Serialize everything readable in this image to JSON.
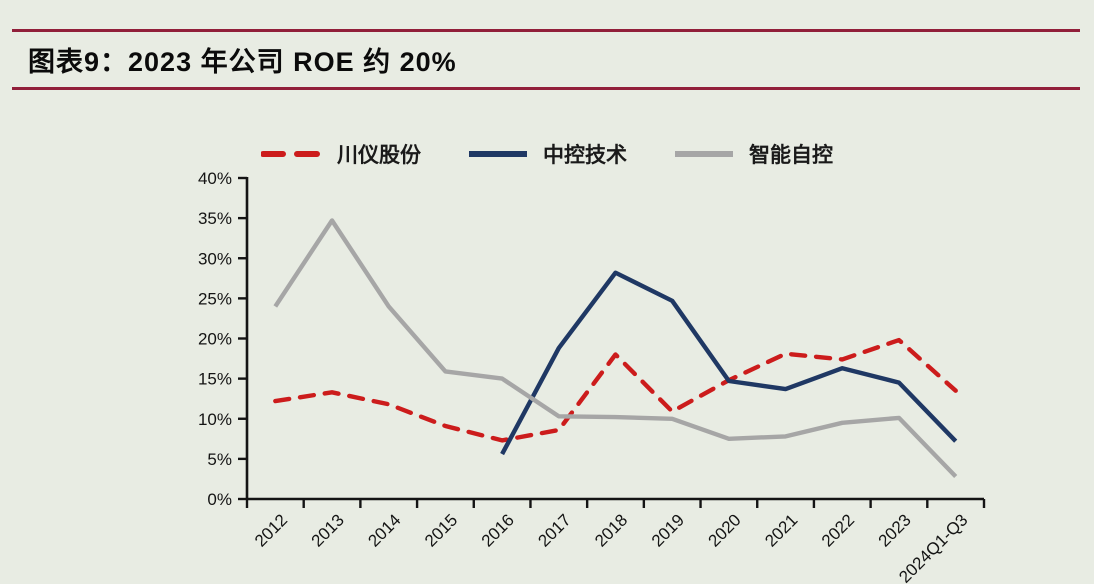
{
  "page": {
    "background_color": "#e8ece3",
    "rule_color": "#911f3a"
  },
  "header": {
    "title": "图表9：2023 年公司 ROE 约 20%"
  },
  "chart_data": {
    "type": "line",
    "title": "图表9：2023 年公司 ROE 约 20%",
    "categories": [
      "2012",
      "2013",
      "2014",
      "2015",
      "2016",
      "2017",
      "2018",
      "2019",
      "2020",
      "2021",
      "2022",
      "2023",
      "2024Q1-Q3"
    ],
    "series": [
      {
        "name": "川仪股份",
        "color": "#cc1c1c",
        "line_style": "dashed",
        "values": [
          12.2,
          13.3,
          11.8,
          9.1,
          7.3,
          8.6,
          18.0,
          10.9,
          14.8,
          18.1,
          17.4,
          19.8,
          13.5
        ]
      },
      {
        "name": "中控技术",
        "color": "#1f3864",
        "line_style": "solid",
        "values": [
          null,
          null,
          null,
          null,
          5.6,
          18.8,
          28.2,
          24.7,
          14.7,
          13.7,
          16.3,
          14.5,
          7.2
        ]
      },
      {
        "name": "智能自控",
        "color": "#a6a6a6",
        "line_style": "solid",
        "values": [
          24.0,
          34.7,
          24.0,
          15.9,
          15.0,
          10.3,
          10.2,
          10.0,
          7.5,
          7.8,
          9.5,
          10.1,
          2.8
        ]
      }
    ],
    "ylabel": "",
    "xlabel": "",
    "ylim": [
      0,
      40
    ],
    "ytick_step": 5,
    "ytick_suffix": "%",
    "grid": false,
    "legend_position": "top-center",
    "axis_color": "#141414"
  }
}
